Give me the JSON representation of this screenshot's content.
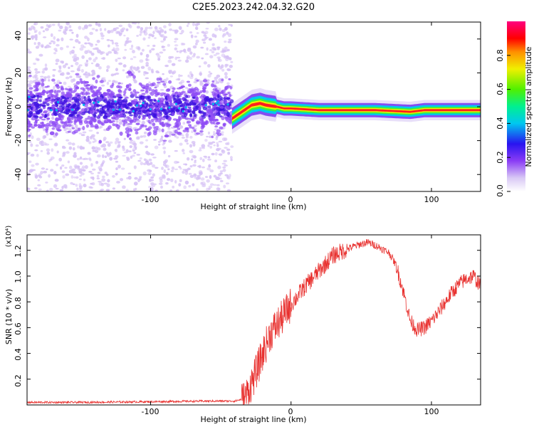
{
  "figure_title": "C2E5.2023.242.04.32.G20",
  "colors": {
    "snr_line": "#e8302e",
    "scatter_weak": "#d6c2f5",
    "scatter_mid": "#8e4cf5",
    "scatter_strong": "#3b10e0"
  },
  "chart_data": [
    {
      "type": "heatmap",
      "title": "C2E5.2023.242.04.32.G20",
      "xlabel": "Height of straight line (km)",
      "ylabel": "Frequency (Hz)",
      "xlim": [
        -188,
        135
      ],
      "ylim": [
        -50,
        50
      ],
      "xticks": [
        -100,
        0,
        100
      ],
      "yticks": [
        -40,
        -20,
        0,
        20,
        40
      ],
      "colorbar": {
        "label": "Normalized spectral amplitude",
        "range": [
          0.0,
          1.0
        ],
        "ticks": [
          0.0,
          0.2,
          0.4,
          0.6,
          0.8
        ],
        "colormap": [
          "#ffffff",
          "#c8b4f0",
          "#7f2ef5",
          "#2e19f0",
          "#00c8f0",
          "#00f08c",
          "#4cf000",
          "#f0f000",
          "#ff8c00",
          "#ff0000",
          "#ff0078"
        ]
      },
      "noise_region": {
        "x_range": [
          -188,
          -42
        ],
        "band_center_hz": 0,
        "band_halfwidth_hz": 8
      },
      "carrier_track": {
        "x": [
          -42,
          -35,
          -28,
          -22,
          -18,
          -10,
          -5,
          0,
          20,
          60,
          85,
          95,
          110,
          135
        ],
        "freq_hz": [
          -7,
          -3,
          1,
          2,
          1,
          0,
          -1,
          -1,
          -2,
          -2,
          -3,
          -2,
          -2,
          -2
        ]
      }
    },
    {
      "type": "line",
      "xlabel": "Height of straight line (km)",
      "ylabel": "SNR (10 * v/v)",
      "y_multiplier": "(x10⁴)",
      "xlim": [
        -188,
        135
      ],
      "ylim": [
        0,
        1.32
      ],
      "xticks": [
        -100,
        0,
        100
      ],
      "yticks": [
        0.2,
        0.4,
        0.6,
        0.8,
        1.0,
        1.2
      ],
      "series": [
        {
          "x": [
            -188,
            -150,
            -100,
            -60,
            -40,
            -33,
            -30,
            -25,
            -20,
            -15,
            -10,
            -5,
            0,
            5,
            10,
            15,
            20,
            25,
            30,
            40,
            50,
            55,
            60,
            70,
            75,
            80,
            85,
            90,
            95,
            100,
            105,
            110,
            115,
            120,
            125,
            130,
            135
          ],
          "y": [
            0.02,
            0.02,
            0.025,
            0.03,
            0.03,
            0.05,
            0.12,
            0.25,
            0.4,
            0.55,
            0.62,
            0.7,
            0.78,
            0.85,
            0.92,
            0.98,
            1.04,
            1.1,
            1.16,
            1.21,
            1.25,
            1.26,
            1.24,
            1.18,
            1.08,
            0.88,
            0.65,
            0.58,
            0.6,
            0.65,
            0.72,
            0.8,
            0.88,
            0.94,
            0.98,
            1.0,
            0.92
          ]
        }
      ]
    }
  ],
  "labels": {
    "top_x_ticks": [
      "-100",
      "0",
      "100"
    ],
    "top_y_ticks": [
      "-40",
      "-20",
      "0",
      "20",
      "40"
    ],
    "cbar_ticks": [
      "0.0",
      "0.2",
      "0.4",
      "0.6",
      "0.8"
    ],
    "bottom_x_ticks": [
      "-100",
      "0",
      "100"
    ],
    "bottom_y_ticks": [
      "0.2",
      "0.4",
      "0.6",
      "0.8",
      "1.0",
      "1.2"
    ]
  }
}
